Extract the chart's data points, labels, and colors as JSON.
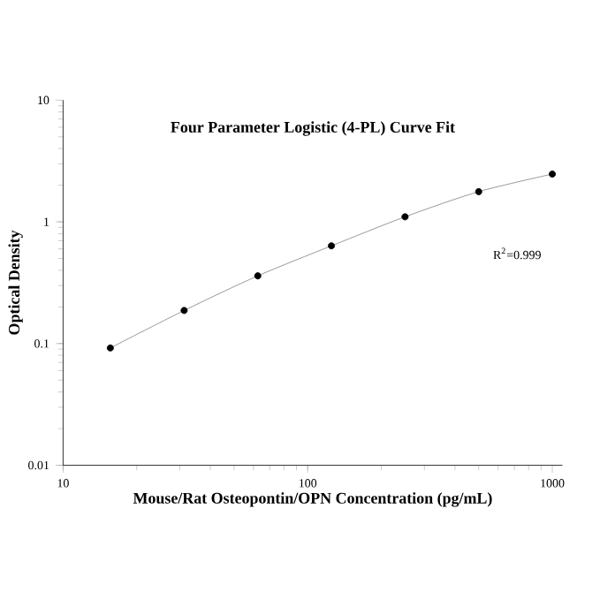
{
  "chart_data": {
    "type": "scatter",
    "title": "Four Parameter Logistic (4-PL) Curve Fit",
    "xlabel": "Mouse/Rat Osteopontin/OPN Concentration (pg/mL)",
    "ylabel": "Optical Density",
    "log": "xy",
    "xlim": [
      10,
      1100
    ],
    "ylim": [
      0.01,
      10
    ],
    "xticks": [
      10,
      100,
      1000
    ],
    "yticks": [
      0.01,
      0.1,
      1,
      10
    ],
    "grid": false,
    "series": [
      {
        "marker": "circle",
        "color": "#000000",
        "x": [
          15.6,
          31.25,
          62.5,
          125,
          250,
          500,
          1000
        ],
        "values": [
          0.092,
          0.187,
          0.36,
          0.635,
          1.1,
          1.77,
          2.47
        ]
      },
      {
        "type": "line",
        "color": "#808080",
        "marker": "none",
        "x": [
          15.6,
          31.25,
          62.5,
          125,
          250,
          500,
          1000
        ],
        "values": [
          0.092,
          0.187,
          0.36,
          0.635,
          1.1,
          1.77,
          2.47
        ]
      }
    ],
    "annotations": [
      "R$^{2}$=0.999"
    ]
  }
}
